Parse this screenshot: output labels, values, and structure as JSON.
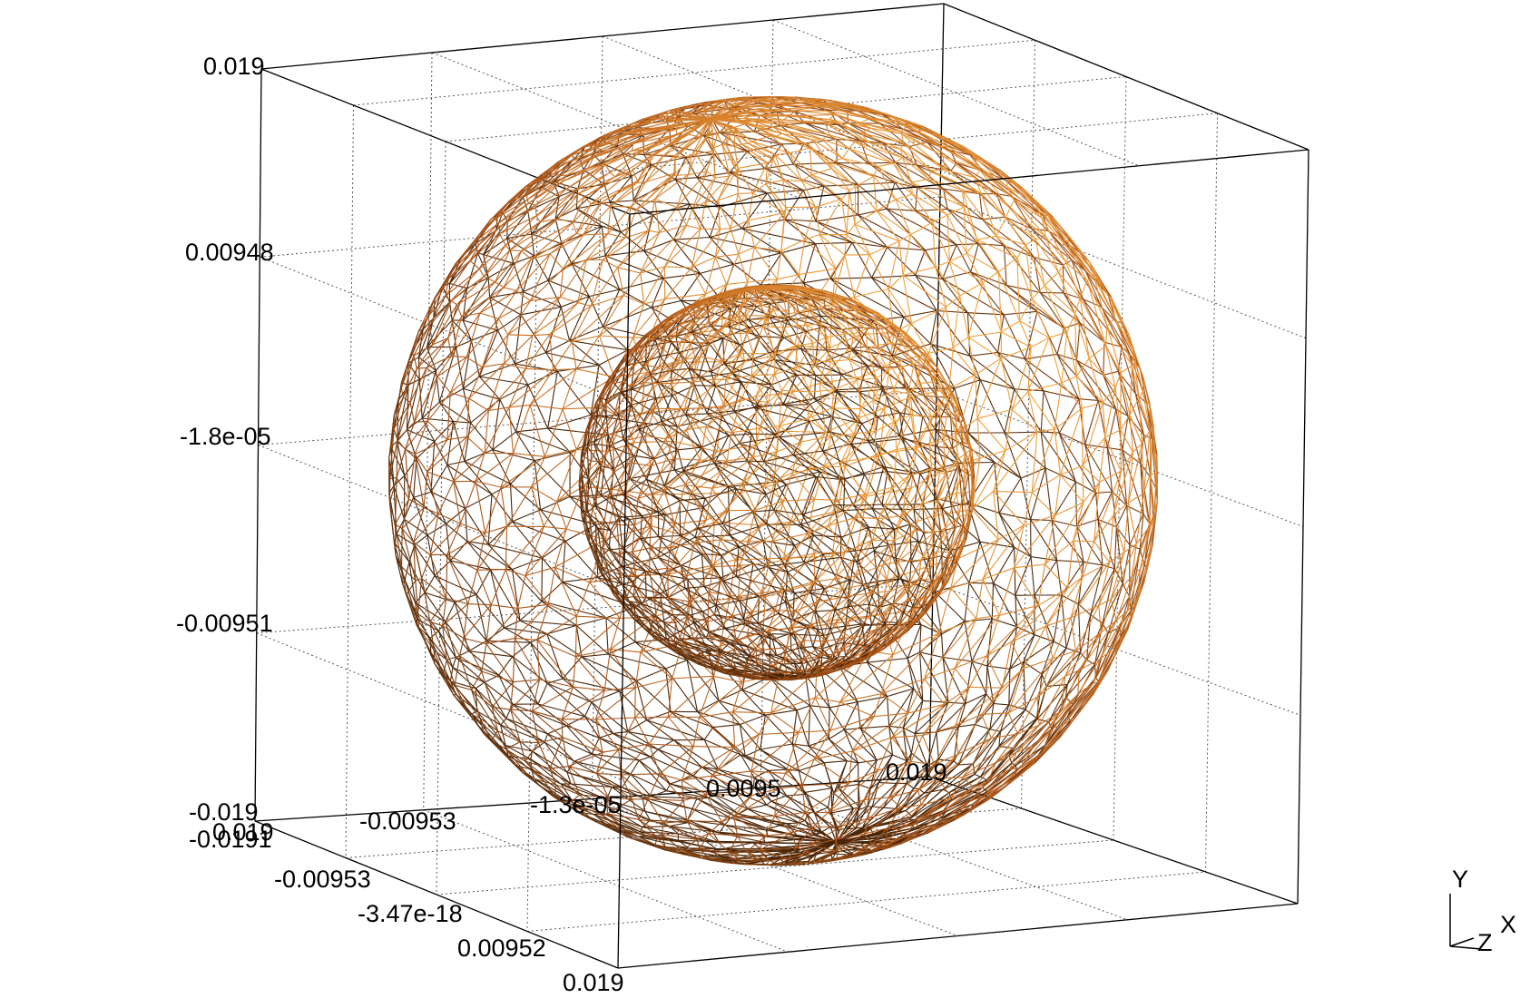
{
  "viewer": {
    "colors": {
      "background": "#ffffff",
      "mesh_dark": "#4a2608",
      "mesh_mid": "#b4591a",
      "mesh_light": "#f4a23c",
      "box": "#000000",
      "grid": "#555555"
    },
    "spheres": [
      "outer-sphere-wireframe",
      "inner-sphere-wireframe"
    ]
  },
  "axes": {
    "y_ticks": [
      "0.019",
      "0.00948",
      "-1.8e-05",
      "-0.00951",
      "-0.019"
    ],
    "x_ticks": [
      "-0.019",
      "-0.00953",
      "-1.3e-05",
      "0.0095",
      "0.019"
    ],
    "z_ticks": [
      "-0.019",
      "-0.00953",
      "-3.47e-18",
      "0.00952",
      "0.019"
    ],
    "overlap_labels": [
      "-0.0191",
      "0.019"
    ]
  },
  "triad": {
    "y": "Y",
    "z": "Z",
    "x": "X"
  }
}
